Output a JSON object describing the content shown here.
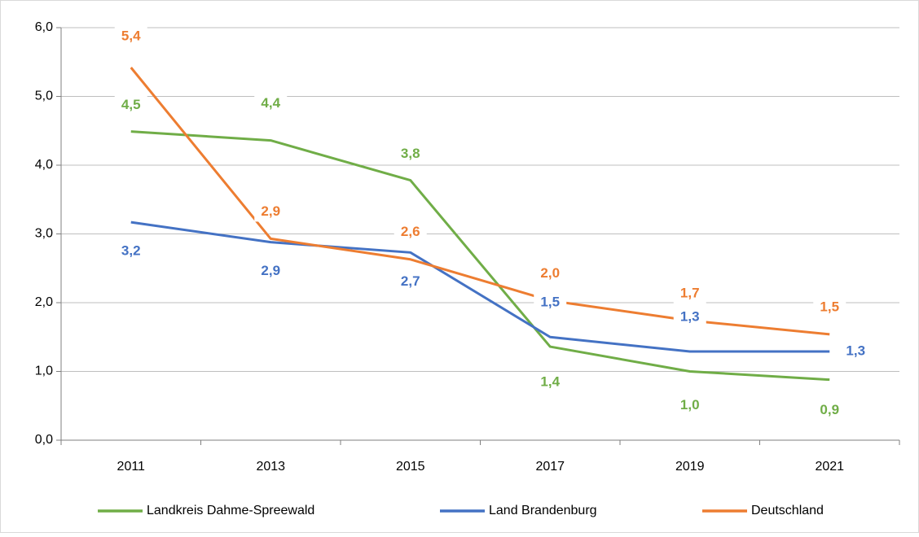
{
  "chart_data": {
    "type": "line",
    "categories": [
      "2011",
      "2013",
      "2015",
      "2017",
      "2019",
      "2021"
    ],
    "series": [
      {
        "name": "Landkreis Dahme-Spreewald",
        "color": "#70ad47",
        "values": [
          4.49,
          4.36,
          3.78,
          1.36,
          1.0,
          0.88
        ],
        "value_labels": [
          "4,5",
          "4,4",
          "3,8",
          "1,4",
          "1,0",
          "0,9"
        ]
      },
      {
        "name": "Land Brandenburg",
        "color": "#4472c4",
        "values": [
          3.17,
          2.88,
          2.73,
          1.5,
          1.29,
          1.29
        ],
        "value_labels": [
          "3,2",
          "2,9",
          "2,7",
          "1,5",
          "1,3",
          "1,3"
        ]
      },
      {
        "name": "Deutschland",
        "color": "#ed7d31",
        "values": [
          5.42,
          2.93,
          2.63,
          2.03,
          1.74,
          1.54
        ],
        "value_labels": [
          "5,4",
          "2,9",
          "2,6",
          "2,0",
          "1,7",
          "1,5"
        ]
      }
    ],
    "ylim": [
      0,
      6
    ],
    "yticks": [
      {
        "value": 0,
        "label": "0,0"
      },
      {
        "value": 1,
        "label": "1,0"
      },
      {
        "value": 2,
        "label": "2,0"
      },
      {
        "value": 3,
        "label": "3,0"
      },
      {
        "value": 4,
        "label": "4,0"
      },
      {
        "value": 5,
        "label": "5,0"
      },
      {
        "value": 6,
        "label": "6,0"
      }
    ],
    "grid": true,
    "legend": "bottom"
  }
}
